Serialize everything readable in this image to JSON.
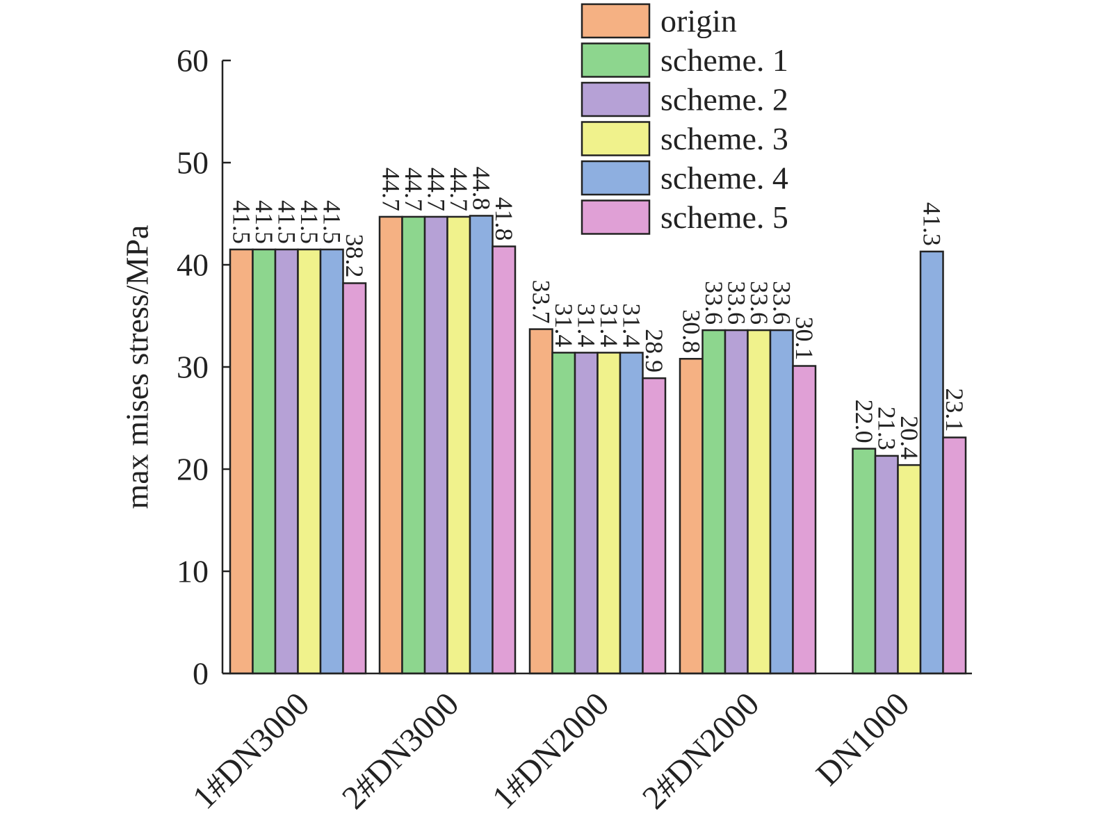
{
  "chart_data": {
    "type": "bar",
    "title": "",
    "xlabel": "",
    "ylabel": "max mises stress/MPa",
    "ylim": [
      0,
      60
    ],
    "yticks": [
      0,
      10,
      20,
      30,
      40,
      50,
      60
    ],
    "grid": false,
    "legend_position": "top-right",
    "categories": [
      "1#DN3000",
      "2#DN3000",
      "1#DN2000",
      "2#DN2000",
      "DN1000"
    ],
    "series": [
      {
        "name": "origin",
        "color": "#F5B183",
        "values": [
          41.5,
          44.7,
          33.7,
          30.8,
          null
        ]
      },
      {
        "name": "scheme. 1",
        "color": "#8DD68E",
        "values": [
          41.5,
          44.7,
          31.4,
          33.6,
          22.0
        ]
      },
      {
        "name": "scheme. 2",
        "color": "#B6A1D6",
        "values": [
          41.5,
          44.7,
          31.4,
          33.6,
          21.3
        ]
      },
      {
        "name": "scheme. 3",
        "color": "#F0F28C",
        "values": [
          41.5,
          44.7,
          31.4,
          33.6,
          20.4
        ]
      },
      {
        "name": "scheme. 4",
        "color": "#8EAFE0",
        "values": [
          41.5,
          44.8,
          31.4,
          33.6,
          41.3
        ]
      },
      {
        "name": "scheme. 5",
        "color": "#E0A0D6",
        "values": [
          38.2,
          41.8,
          28.9,
          30.1,
          23.1
        ]
      }
    ]
  }
}
